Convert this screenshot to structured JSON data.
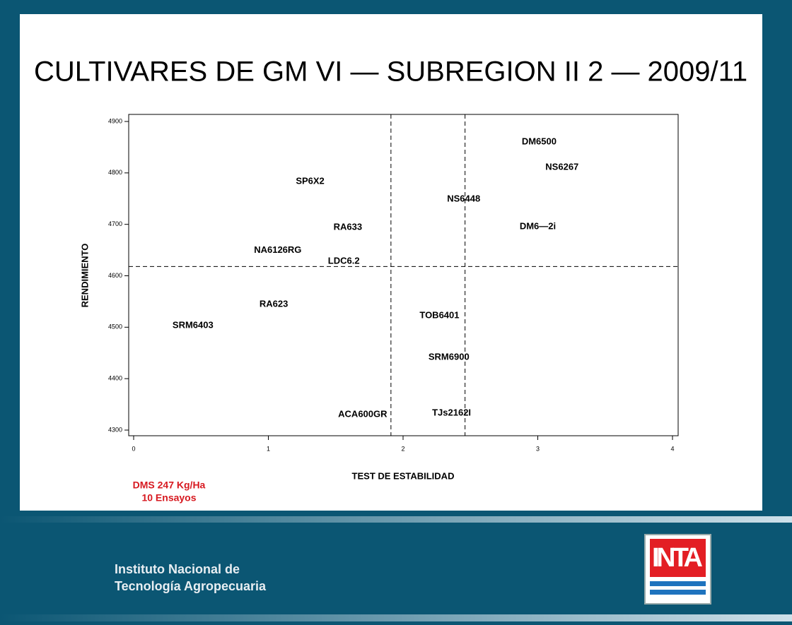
{
  "chart_data": {
    "type": "scatter",
    "title": "CULTIVARES DE GM VI — SUBREGION II 2 — 2009/11",
    "x_label": "TEST DE ESTABILIDAD",
    "y_label": "RENDIMIENTO",
    "point_labels": [
      "DM6500",
      "NS6267",
      "SP6X2",
      "NS6448",
      "RA633",
      "DM6—2i",
      "NA6126RG",
      "LDC6.2",
      "RA623",
      "TOB6401",
      "SRM6403",
      "SRM6900",
      "ACA600GR",
      "TJs2162I"
    ],
    "x": [
      3.01,
      3.18,
      1.31,
      2.45,
      1.59,
      3.0,
      1.07,
      1.56,
      1.04,
      2.27,
      0.44,
      2.34,
      1.7,
      2.36
    ],
    "values": [
      4860,
      4811,
      4783,
      4749,
      4694,
      4695,
      4649,
      4628,
      4544,
      4522,
      4503,
      4441,
      4330,
      4333
    ],
    "xlim": [
      0,
      4
    ],
    "xticks": [
      0,
      1,
      2,
      3,
      4
    ],
    "ylim": [
      4300,
      4900
    ],
    "yticks": [
      4300,
      4400,
      4500,
      4600,
      4700,
      4800,
      4900
    ],
    "vlines": [
      1.91,
      2.46
    ],
    "hlines": [
      4618
    ],
    "annotations": [
      "DMS 247 Kg/Ha",
      "10 Ensayos"
    ]
  },
  "footer": {
    "institution": [
      "Instituto Nacional de",
      "Tecnología Agropecuaria"
    ],
    "logo": "INTA"
  }
}
